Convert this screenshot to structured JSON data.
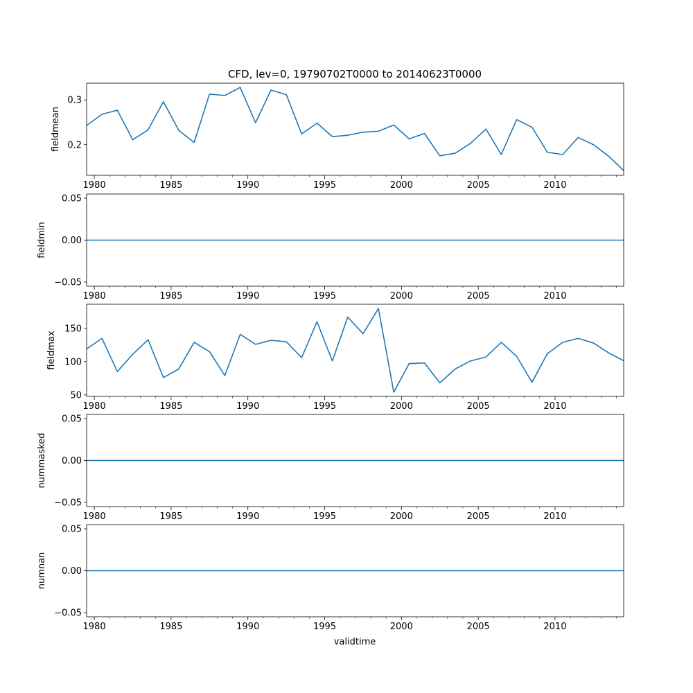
{
  "figure": {
    "title": "CFD, lev=0, 19790702T0000 to 20140623T0000",
    "xlabel": "validtime",
    "line_color": "#1f77b4"
  },
  "chart_data": [
    {
      "type": "line",
      "name": "fieldmean",
      "ylabel": "fieldmean",
      "x": [
        1979.5,
        1980.5,
        1981.5,
        1982.5,
        1983.5,
        1984.5,
        1985.5,
        1986.5,
        1987.5,
        1988.5,
        1989.5,
        1990.5,
        1991.5,
        1992.5,
        1993.5,
        1994.5,
        1995.5,
        1996.5,
        1997.5,
        1998.5,
        1999.5,
        2000.5,
        2001.5,
        2002.5,
        2003.5,
        2004.5,
        2005.5,
        2006.5,
        2007.5,
        2008.5,
        2009.5,
        2010.5,
        2011.5,
        2012.5,
        2013.5,
        2014.5
      ],
      "values": [
        0.243,
        0.268,
        0.277,
        0.211,
        0.233,
        0.296,
        0.232,
        0.205,
        0.313,
        0.31,
        0.328,
        0.249,
        0.322,
        0.312,
        0.224,
        0.248,
        0.218,
        0.221,
        0.228,
        0.23,
        0.244,
        0.213,
        0.225,
        0.175,
        0.181,
        0.203,
        0.235,
        0.178,
        0.256,
        0.239,
        0.183,
        0.178,
        0.216,
        0.2,
        0.174,
        0.141
      ],
      "xlim": [
        1979.5,
        2014.47
      ],
      "ylim": [
        0.1315,
        0.3375
      ],
      "yticks": [
        0.2,
        0.3
      ],
      "ytick_labels": [
        "0.2",
        "0.3"
      ]
    },
    {
      "type": "line",
      "name": "fieldmin",
      "ylabel": "fieldmin",
      "x": [
        1979.5,
        2014.5
      ],
      "values": [
        0.0,
        0.0
      ],
      "xlim": [
        1979.5,
        2014.47
      ],
      "ylim": [
        -0.055,
        0.055
      ],
      "yticks": [
        -0.05,
        0.0,
        0.05
      ],
      "ytick_labels": [
        "−0.05",
        "0.00",
        "0.05"
      ]
    },
    {
      "type": "line",
      "name": "fieldmax",
      "ylabel": "fieldmax",
      "x": [
        1979.5,
        1980.5,
        1981.5,
        1982.5,
        1983.5,
        1984.5,
        1985.5,
        1986.5,
        1987.5,
        1988.5,
        1989.5,
        1990.5,
        1991.5,
        1992.5,
        1993.5,
        1994.5,
        1995.5,
        1996.5,
        1997.5,
        1998.5,
        1999.5,
        2000.5,
        2001.5,
        2002.5,
        2003.5,
        2004.5,
        2005.5,
        2006.5,
        2007.5,
        2008.5,
        2009.5,
        2010.5,
        2011.5,
        2012.5,
        2013.5,
        2014.5
      ],
      "values": [
        119,
        135,
        85,
        111,
        133,
        76,
        89,
        129,
        115,
        79,
        141,
        126,
        132,
        130,
        106,
        160,
        101,
        167,
        142,
        180,
        54,
        97,
        98,
        68,
        89,
        101,
        107,
        129,
        108,
        69,
        112,
        129,
        135,
        128,
        113,
        101
      ],
      "xlim": [
        1979.5,
        2014.47
      ],
      "ylim": [
        47.7,
        186.3
      ],
      "yticks": [
        50,
        100,
        150
      ],
      "ytick_labels": [
        "50",
        "100",
        "150"
      ]
    },
    {
      "type": "line",
      "name": "nummasked",
      "ylabel": "nummasked",
      "x": [
        1979.5,
        2014.5
      ],
      "values": [
        0.0,
        0.0
      ],
      "xlim": [
        1979.5,
        2014.47
      ],
      "ylim": [
        -0.055,
        0.055
      ],
      "yticks": [
        -0.05,
        0.0,
        0.05
      ],
      "ytick_labels": [
        "−0.05",
        "0.00",
        "0.05"
      ]
    },
    {
      "type": "line",
      "name": "numnan",
      "ylabel": "numnan",
      "x": [
        1979.5,
        2014.5
      ],
      "values": [
        0.0,
        0.0
      ],
      "xlim": [
        1979.5,
        2014.47
      ],
      "ylim": [
        -0.055,
        0.055
      ],
      "yticks": [
        -0.05,
        0.0,
        0.05
      ],
      "ytick_labels": [
        "−0.05",
        "0.00",
        "0.05"
      ]
    }
  ],
  "xaxis": {
    "major_ticks": [
      1980,
      1985,
      1990,
      1995,
      2000,
      2005,
      2010
    ],
    "major_tick_labels": [
      "1980",
      "1985",
      "1990",
      "1995",
      "2000",
      "2005",
      "2010"
    ],
    "minor_ticks": [
      1981,
      1982,
      1983,
      1984,
      1986,
      1987,
      1988,
      1989,
      1991,
      1992,
      1993,
      1994,
      1996,
      1997,
      1998,
      1999,
      2001,
      2002,
      2003,
      2004,
      2006,
      2007,
      2008,
      2009,
      2011,
      2012,
      2013,
      2014
    ]
  }
}
